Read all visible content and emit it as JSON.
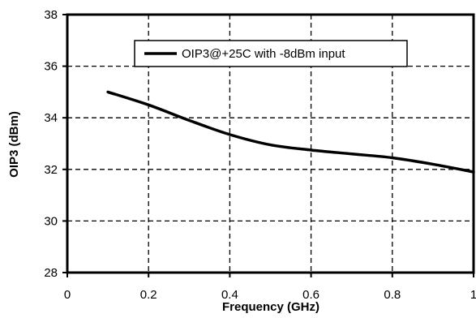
{
  "chart_data": {
    "type": "line",
    "title": "",
    "xlabel": "Frequency (GHz)",
    "ylabel": "OIP3 (dBm)",
    "xlim": [
      0,
      1
    ],
    "ylim": [
      28,
      38
    ],
    "x_ticks": [
      0,
      0.2,
      0.4,
      0.6,
      0.8,
      1
    ],
    "x_tick_labels": [
      "0",
      "0.2",
      "0.4",
      "0.6",
      "0.8",
      "1"
    ],
    "y_ticks": [
      28,
      30,
      32,
      34,
      36,
      38
    ],
    "y_tick_labels": [
      "28",
      "30",
      "32",
      "34",
      "36",
      "38"
    ],
    "grid": true,
    "grid_style": "dashed",
    "legend_position": "top",
    "series": [
      {
        "name": "OIP3@+25C with -8dBm input",
        "color": "#000000",
        "x": [
          0.1,
          0.2,
          0.3,
          0.4,
          0.5,
          0.6,
          0.7,
          0.8,
          0.9,
          1.0
        ],
        "y": [
          35.0,
          34.5,
          33.9,
          33.35,
          32.95,
          32.75,
          32.6,
          32.45,
          32.2,
          31.9
        ]
      }
    ]
  }
}
